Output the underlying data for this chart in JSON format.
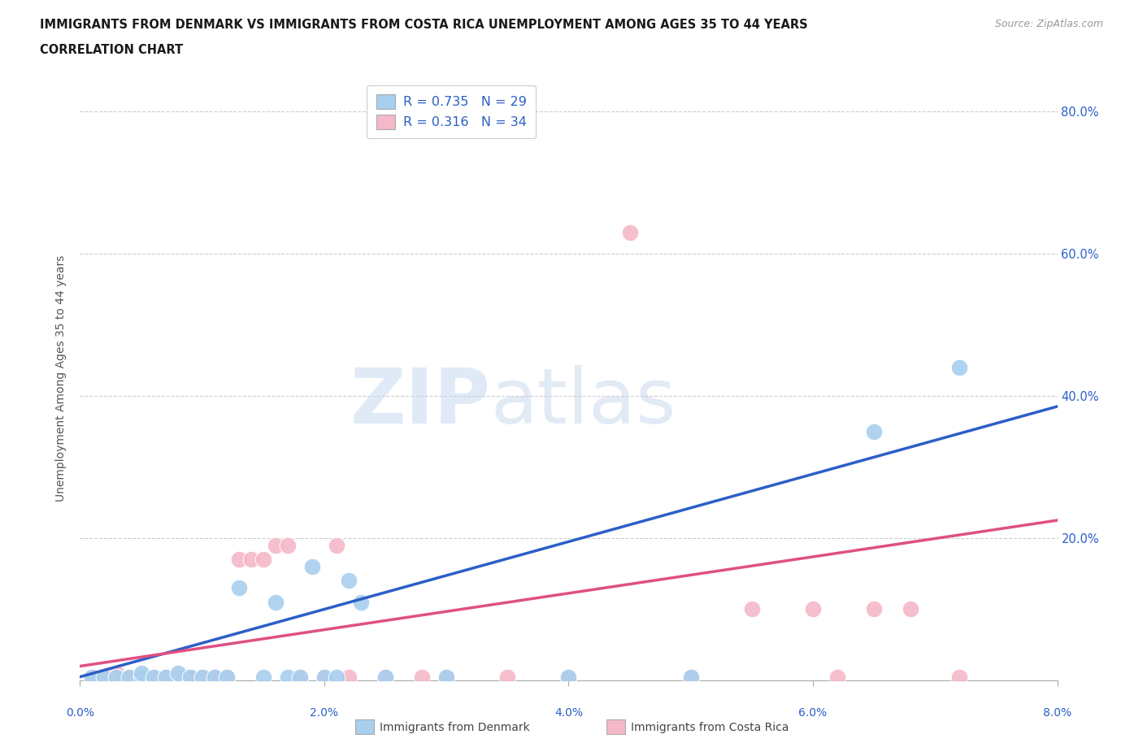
{
  "title_line1": "IMMIGRANTS FROM DENMARK VS IMMIGRANTS FROM COSTA RICA UNEMPLOYMENT AMONG AGES 35 TO 44 YEARS",
  "title_line2": "CORRELATION CHART",
  "source_text": "Source: ZipAtlas.com",
  "ylabel": "Unemployment Among Ages 35 to 44 years",
  "xlim": [
    0.0,
    0.08
  ],
  "ylim": [
    0.0,
    0.85
  ],
  "yticks": [
    0.0,
    0.2,
    0.4,
    0.6,
    0.8
  ],
  "ytick_labels": [
    "",
    "20.0%",
    "40.0%",
    "60.0%",
    "80.0%"
  ],
  "xtick_labels": [
    "0.0%",
    "2.0%",
    "4.0%",
    "6.0%",
    "8.0%"
  ],
  "xtick_vals": [
    0.0,
    0.02,
    0.04,
    0.06,
    0.08
  ],
  "denmark_R": 0.735,
  "denmark_N": 29,
  "costarica_R": 0.316,
  "costarica_N": 34,
  "denmark_color": "#A8CFEE",
  "costarica_color": "#F5B8C8",
  "denmark_line_color": "#2B5FC7",
  "costarica_line_color": "#E05080",
  "watermark_zip": "ZIP",
  "watermark_atlas": "atlas",
  "denmark_points": [
    [
      0.001,
      0.005
    ],
    [
      0.002,
      0.005
    ],
    [
      0.003,
      0.005
    ],
    [
      0.004,
      0.005
    ],
    [
      0.005,
      0.005
    ],
    [
      0.005,
      0.01
    ],
    [
      0.006,
      0.005
    ],
    [
      0.007,
      0.005
    ],
    [
      0.008,
      0.01
    ],
    [
      0.009,
      0.005
    ],
    [
      0.01,
      0.005
    ],
    [
      0.011,
      0.005
    ],
    [
      0.012,
      0.005
    ],
    [
      0.013,
      0.13
    ],
    [
      0.015,
      0.005
    ],
    [
      0.016,
      0.11
    ],
    [
      0.017,
      0.005
    ],
    [
      0.018,
      0.005
    ],
    [
      0.019,
      0.16
    ],
    [
      0.02,
      0.005
    ],
    [
      0.021,
      0.005
    ],
    [
      0.022,
      0.14
    ],
    [
      0.023,
      0.11
    ],
    [
      0.025,
      0.005
    ],
    [
      0.03,
      0.005
    ],
    [
      0.04,
      0.005
    ],
    [
      0.05,
      0.005
    ],
    [
      0.065,
      0.35
    ],
    [
      0.072,
      0.44
    ]
  ],
  "costarica_points": [
    [
      0.001,
      0.005
    ],
    [
      0.002,
      0.005
    ],
    [
      0.003,
      0.01
    ],
    [
      0.004,
      0.005
    ],
    [
      0.005,
      0.005
    ],
    [
      0.006,
      0.005
    ],
    [
      0.007,
      0.005
    ],
    [
      0.008,
      0.005
    ],
    [
      0.009,
      0.005
    ],
    [
      0.01,
      0.005
    ],
    [
      0.011,
      0.005
    ],
    [
      0.012,
      0.005
    ],
    [
      0.013,
      0.17
    ],
    [
      0.014,
      0.17
    ],
    [
      0.015,
      0.17
    ],
    [
      0.016,
      0.19
    ],
    [
      0.017,
      0.19
    ],
    [
      0.018,
      0.005
    ],
    [
      0.02,
      0.005
    ],
    [
      0.021,
      0.19
    ],
    [
      0.022,
      0.005
    ],
    [
      0.025,
      0.005
    ],
    [
      0.028,
      0.005
    ],
    [
      0.03,
      0.005
    ],
    [
      0.035,
      0.005
    ],
    [
      0.04,
      0.005
    ],
    [
      0.045,
      0.63
    ],
    [
      0.05,
      0.005
    ],
    [
      0.055,
      0.1
    ],
    [
      0.06,
      0.1
    ],
    [
      0.062,
      0.005
    ],
    [
      0.065,
      0.1
    ],
    [
      0.068,
      0.1
    ],
    [
      0.072,
      0.005
    ]
  ],
  "denmark_line": [
    [
      0.0,
      0.005
    ],
    [
      0.08,
      0.385
    ]
  ],
  "costarica_line": [
    [
      0.0,
      0.02
    ],
    [
      0.08,
      0.225
    ]
  ]
}
